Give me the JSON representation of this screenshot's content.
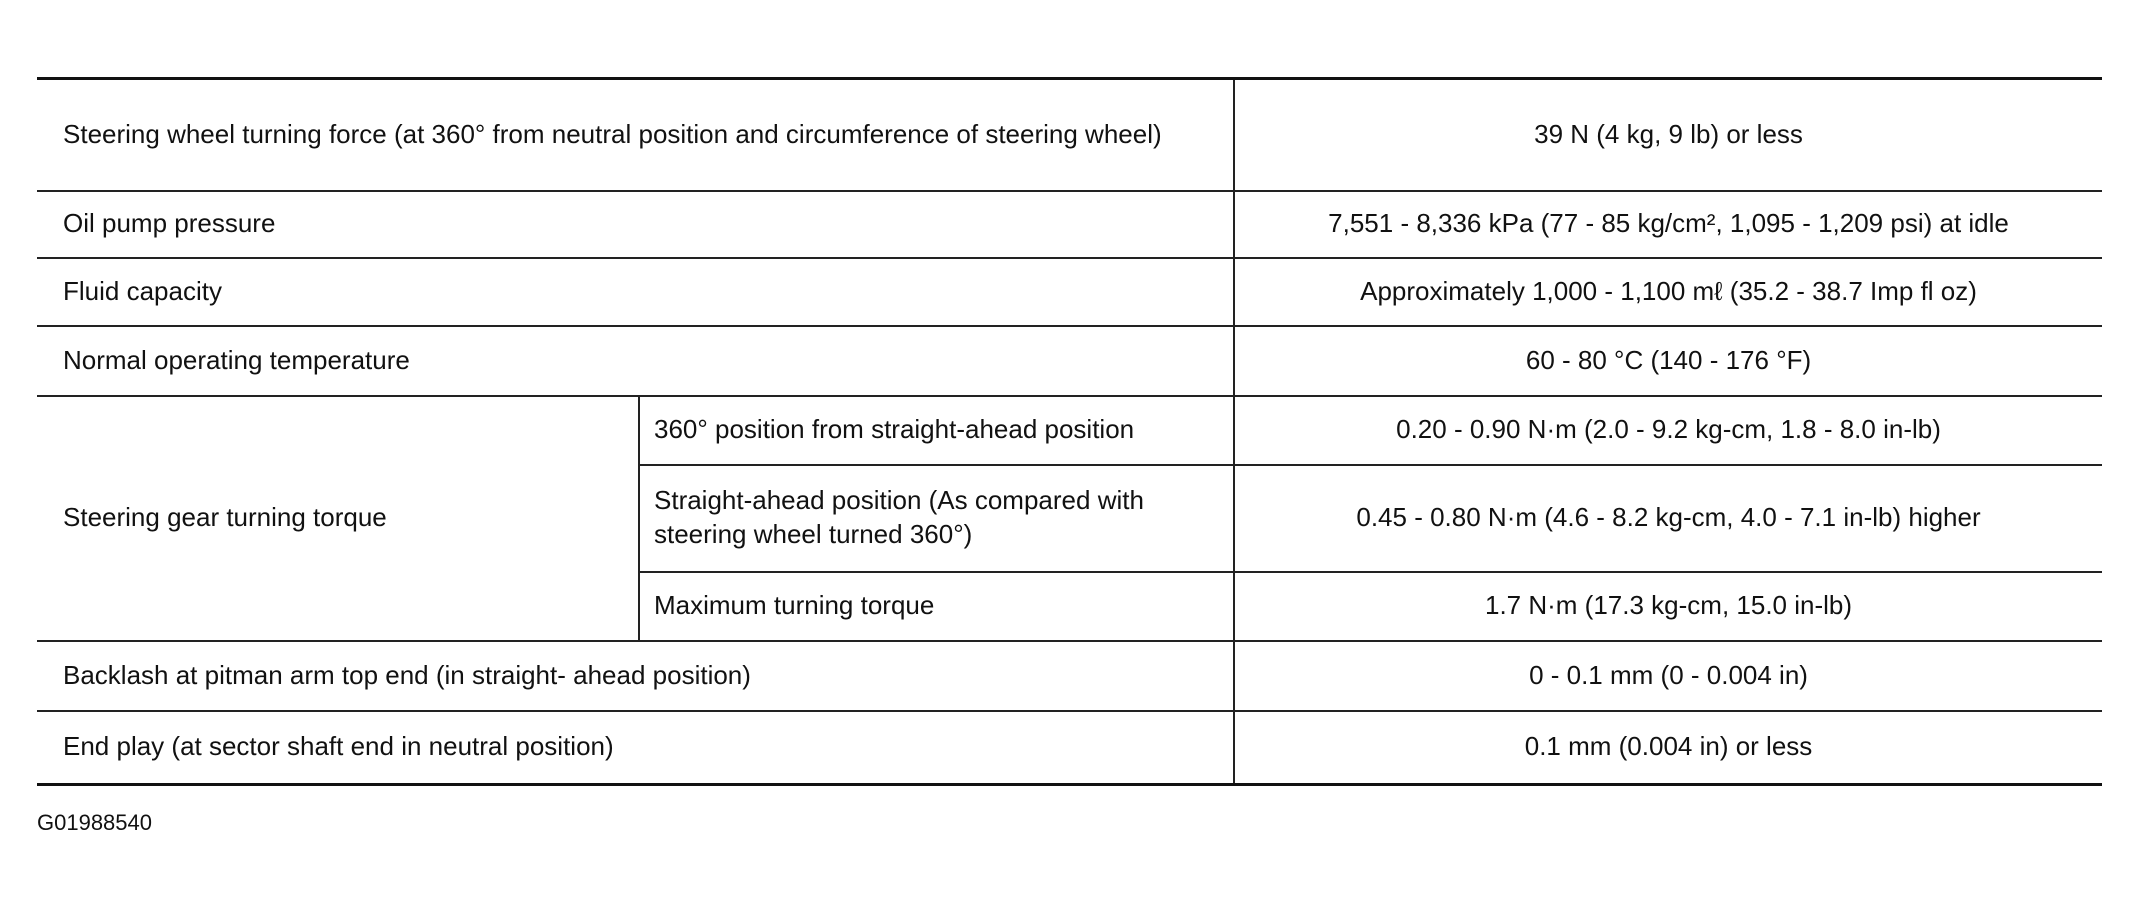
{
  "table": {
    "rows": [
      {
        "label": "Steering wheel turning force (at 360° from neutral position and circumference of steering wheel)",
        "value": "39 N (4 kg, 9 lb) or less"
      },
      {
        "label": "Oil pump pressure",
        "value": "7,551 - 8,336 kPa (77 - 85 kg/cm², 1,095 - 1,209 psi) at idle"
      },
      {
        "label": "Fluid capacity",
        "value": "Approximately 1,000 - 1,100 mℓ (35.2 - 38.7 Imp fl oz)"
      },
      {
        "label": "Normal operating temperature",
        "value": "60 - 80 °C (140 - 176 °F)"
      },
      {
        "label": "Steering gear turning torque",
        "items": [
          {
            "condition": "360° position from straight-ahead position",
            "value": "0.20 - 0.90 N·m (2.0 - 9.2 kg-cm, 1.8 - 8.0 in-lb)"
          },
          {
            "condition": "Straight-ahead position (As compared with steering wheel turned 360°)",
            "value": "0.45 - 0.80 N·m (4.6 - 8.2 kg-cm, 4.0 - 7.1 in-lb) higher"
          },
          {
            "condition": "Maximum turning torque",
            "value": "1.7 N·m (17.3 kg-cm, 15.0 in-lb)"
          }
        ]
      },
      {
        "label": "Backlash at pitman arm top end (in straight- ahead position)",
        "value": "0 - 0.1 mm (0 - 0.004 in)"
      },
      {
        "label": "End play (at sector shaft end in neutral position)",
        "value": "0.1 mm (0.004 in) or less"
      }
    ]
  },
  "footer": {
    "code": "G01988540"
  }
}
